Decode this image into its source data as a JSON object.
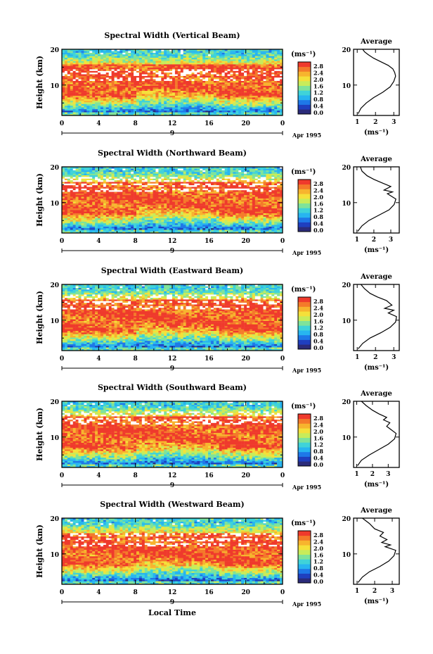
{
  "figure": {
    "date_label": "Apr 1995",
    "date_day": "9",
    "xlabel": "Local Time"
  },
  "colorscale": {
    "unit": "(ms⁻¹)",
    "ticks": [
      "2.8",
      "2.4",
      "2.0",
      "1.6",
      "1.2",
      "0.8",
      "0.4",
      "0.0"
    ],
    "colors": [
      "#2b2b7a",
      "#1f3fbf",
      "#1e78e8",
      "#27b5f0",
      "#3fd3d9",
      "#7fe39a",
      "#c8ec5a",
      "#f5e03a",
      "#f7b42e",
      "#f47a2a",
      "#ef3a2c"
    ]
  },
  "chart_data": [
    {
      "type": "heatmap",
      "title": "Spectral Width (Vertical Beam)",
      "ylabel": "Height (km)",
      "xlabel": "",
      "x_ticks": [
        "0",
        "4",
        "8",
        "12",
        "16",
        "20",
        "0"
      ],
      "xlim": [
        0,
        24
      ],
      "y_ticks": [
        "20",
        "10"
      ],
      "ylim": [
        1.5,
        20
      ],
      "colorbar": {
        "unit": "(ms⁻¹)",
        "range": [
          0.0,
          2.8
        ]
      },
      "white_gaps": [
        14,
        11.5,
        13
      ]
    },
    {
      "type": "heatmap",
      "title": "Spectral Width (Northward Beam)",
      "ylabel": "Height (km)",
      "xlabel": "",
      "x_ticks": [
        "0",
        "4",
        "8",
        "12",
        "16",
        "20",
        "0"
      ],
      "xlim": [
        0,
        24
      ],
      "y_ticks": [
        "20",
        "10"
      ],
      "ylim": [
        1.5,
        20
      ],
      "colorbar": {
        "unit": "(ms⁻¹)",
        "range": [
          0.0,
          2.8
        ]
      },
      "white_gaps": [
        16.5,
        13.5,
        15
      ]
    },
    {
      "type": "heatmap",
      "title": "Spectral Width (Eastward Beam)",
      "ylabel": "Height (km)",
      "xlabel": "",
      "x_ticks": [
        "0",
        "4",
        "8",
        "12",
        "16",
        "20",
        "0"
      ],
      "xlim": [
        0,
        24
      ],
      "y_ticks": [
        "20",
        "10"
      ],
      "ylim": [
        1.5,
        20
      ],
      "colorbar": {
        "unit": "(ms⁻¹)",
        "range": [
          0.0,
          2.8
        ]
      },
      "white_gaps": [
        16.5,
        13.5,
        15
      ]
    },
    {
      "type": "heatmap",
      "title": "Spectral Width (Southward Beam)",
      "ylabel": "Height (km)",
      "xlabel": "",
      "x_ticks": [
        "0",
        "4",
        "8",
        "12",
        "16",
        "20",
        "0"
      ],
      "xlim": [
        0,
        24
      ],
      "y_ticks": [
        "20",
        "10"
      ],
      "ylim": [
        1.5,
        20
      ],
      "colorbar": {
        "unit": "(ms⁻¹)",
        "range": [
          0.0,
          2.8
        ]
      },
      "white_gaps": [
        16.5,
        14,
        15
      ]
    },
    {
      "type": "heatmap",
      "title": "Spectral Width (Westward Beam)",
      "ylabel": "Height (km)",
      "xlabel": "Local Time",
      "x_ticks": [
        "0",
        "4",
        "8",
        "12",
        "16",
        "20",
        "0"
      ],
      "xlim": [
        0,
        24
      ],
      "y_ticks": [
        "20",
        "10"
      ],
      "ylim": [
        1.5,
        20
      ],
      "colorbar": {
        "unit": "(ms⁻¹)",
        "range": [
          0.0,
          2.8
        ]
      },
      "white_gaps": [
        15.5,
        12.5,
        14
      ]
    },
    {
      "type": "line",
      "title": "Average",
      "xlabel": "(ms⁻¹)",
      "ylabel": "",
      "x_ticks": [
        "1",
        "2",
        "3"
      ],
      "xlim": [
        0.8,
        3.3
      ],
      "y_ticks": [
        "20",
        "10"
      ],
      "ylim": [
        1.5,
        20
      ],
      "series": [
        {
          "x": [
            1.05,
            1.2,
            1.5,
            1.9,
            2.4,
            2.8,
            3.0,
            3.1,
            3.05,
            2.95,
            2.7,
            2.3,
            1.9,
            1.6,
            1.4,
            1.3
          ],
          "y": [
            2.0,
            3.5,
            5.0,
            6.5,
            8.0,
            9.5,
            11.0,
            12.5,
            13.5,
            14.5,
            15.5,
            16.5,
            17.5,
            18.5,
            19.3,
            20.0
          ]
        }
      ]
    },
    {
      "type": "line",
      "title": "Average",
      "xlabel": "(ms⁻¹)",
      "ylabel": "",
      "x_ticks": [
        "1",
        "2",
        "3"
      ],
      "xlim": [
        0.8,
        3.5
      ],
      "y_ticks": [
        "20",
        "10"
      ],
      "ylim": [
        1.5,
        20
      ],
      "series": [
        {
          "x": [
            1.05,
            1.3,
            1.7,
            2.3,
            2.9,
            3.2,
            3.3,
            2.8,
            3.1,
            2.6,
            3.0,
            2.5,
            2.0,
            1.6,
            1.3,
            1.2
          ],
          "y": [
            2.0,
            3.5,
            5.0,
            6.5,
            8.0,
            9.5,
            11.0,
            12.5,
            13.0,
            13.5,
            14.5,
            15.5,
            16.5,
            17.5,
            18.8,
            20.0
          ]
        }
      ]
    },
    {
      "type": "line",
      "title": "Average",
      "xlabel": "(ms⁻¹)",
      "ylabel": "",
      "x_ticks": [
        "1",
        "2",
        "3"
      ],
      "xlim": [
        0.8,
        3.3
      ],
      "y_ticks": [
        "20",
        "10"
      ],
      "ylim": [
        1.5,
        20
      ],
      "series": [
        {
          "x": [
            1.05,
            1.3,
            1.7,
            2.3,
            2.8,
            3.1,
            3.15,
            2.7,
            3.0,
            2.5,
            2.9,
            2.6,
            2.1,
            1.7,
            1.4,
            1.2
          ],
          "y": [
            2.0,
            3.5,
            5.0,
            6.5,
            8.0,
            9.5,
            11.0,
            12.0,
            12.8,
            13.3,
            14.2,
            15.5,
            16.5,
            17.5,
            18.8,
            20.0
          ]
        }
      ]
    },
    {
      "type": "line",
      "title": "Average",
      "xlabel": "(ms⁻¹)",
      "ylabel": "",
      "x_ticks": [
        "1",
        "2",
        "3"
      ],
      "xlim": [
        0.8,
        3.7
      ],
      "y_ticks": [
        "20",
        "10"
      ],
      "ylim": [
        1.5,
        20
      ],
      "series": [
        {
          "x": [
            1.05,
            1.3,
            1.8,
            2.4,
            3.0,
            3.4,
            3.5,
            3.2,
            2.9,
            3.1,
            2.7,
            2.9,
            2.4,
            2.0,
            1.6,
            1.3
          ],
          "y": [
            2.0,
            3.5,
            5.0,
            6.5,
            8.0,
            9.5,
            11.0,
            12.0,
            13.0,
            14.0,
            14.8,
            15.5,
            16.5,
            17.5,
            18.8,
            20.0
          ]
        }
      ]
    },
    {
      "type": "line",
      "title": "Average",
      "xlabel": "(ms⁻¹)",
      "ylabel": "",
      "x_ticks": [
        "1",
        "2",
        "3"
      ],
      "xlim": [
        0.8,
        3.4
      ],
      "y_ticks": [
        "20",
        "10"
      ],
      "ylim": [
        1.5,
        20
      ],
      "series": [
        {
          "x": [
            1.05,
            1.3,
            1.7,
            2.3,
            2.8,
            3.1,
            3.2,
            2.6,
            2.9,
            2.4,
            2.7,
            2.3,
            2.5,
            2.0,
            1.7,
            1.3
          ],
          "y": [
            2.0,
            3.5,
            5.0,
            6.5,
            8.0,
            9.5,
            11.0,
            12.0,
            12.5,
            13.2,
            14.0,
            15.0,
            16.0,
            17.0,
            18.5,
            20.0
          ]
        }
      ]
    }
  ]
}
